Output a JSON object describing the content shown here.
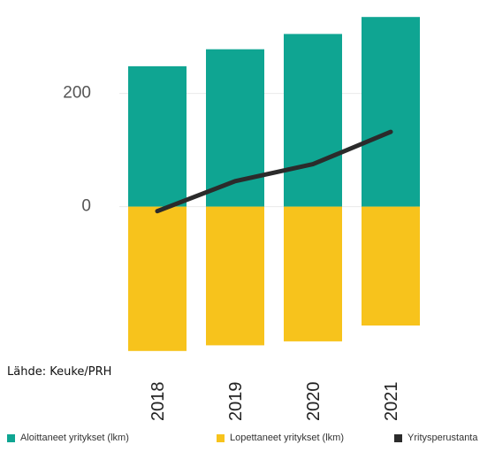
{
  "chart_data": {
    "type": "bar",
    "categories": [
      "2018",
      "2019",
      "2020",
      "2021"
    ],
    "series": [
      {
        "name": "Aloittaneet yritykset (lkm)",
        "kind": "bar",
        "color": "#0fa592",
        "values": [
          248,
          278,
          305,
          335
        ]
      },
      {
        "name": "Lopettaneet yritykset (lkm)",
        "kind": "bar",
        "color": "#f7c31c",
        "values": [
          -255,
          -245,
          -238,
          -210
        ]
      },
      {
        "name": "Yritysperustanta",
        "kind": "line",
        "color": "#2b2b2b",
        "values": [
          -8,
          45,
          75,
          132
        ]
      }
    ],
    "yticks": [
      0,
      200
    ],
    "ylim": [
      -260,
      340
    ],
    "stacked": true,
    "grid": true,
    "legend_position": "bottom",
    "source": "Lähde: Keuke/PRH"
  }
}
